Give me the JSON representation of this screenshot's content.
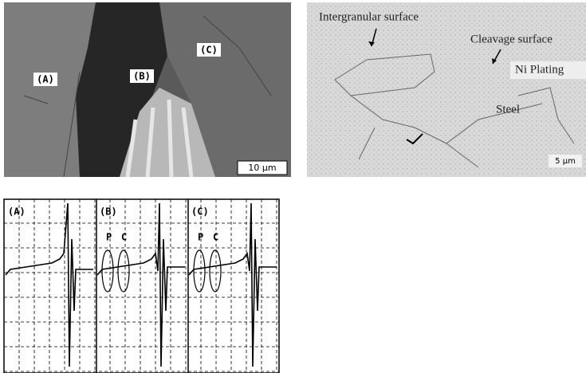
{
  "sem_image": {
    "labels": [
      "(A)",
      "(B)",
      "(C)"
    ],
    "scale_bar": "10 μm"
  },
  "sketch": {
    "labels": [
      "Intergranular surface",
      "Cleavage surface",
      "Ni Plating",
      "Steel"
    ],
    "scale_bar": "5 μm"
  },
  "waveforms": {
    "labels": [
      "(A)",
      "(B)",
      "(C)"
    ],
    "markers": [
      [
        "P",
        "C"
      ],
      [
        "P",
        "C"
      ]
    ]
  }
}
